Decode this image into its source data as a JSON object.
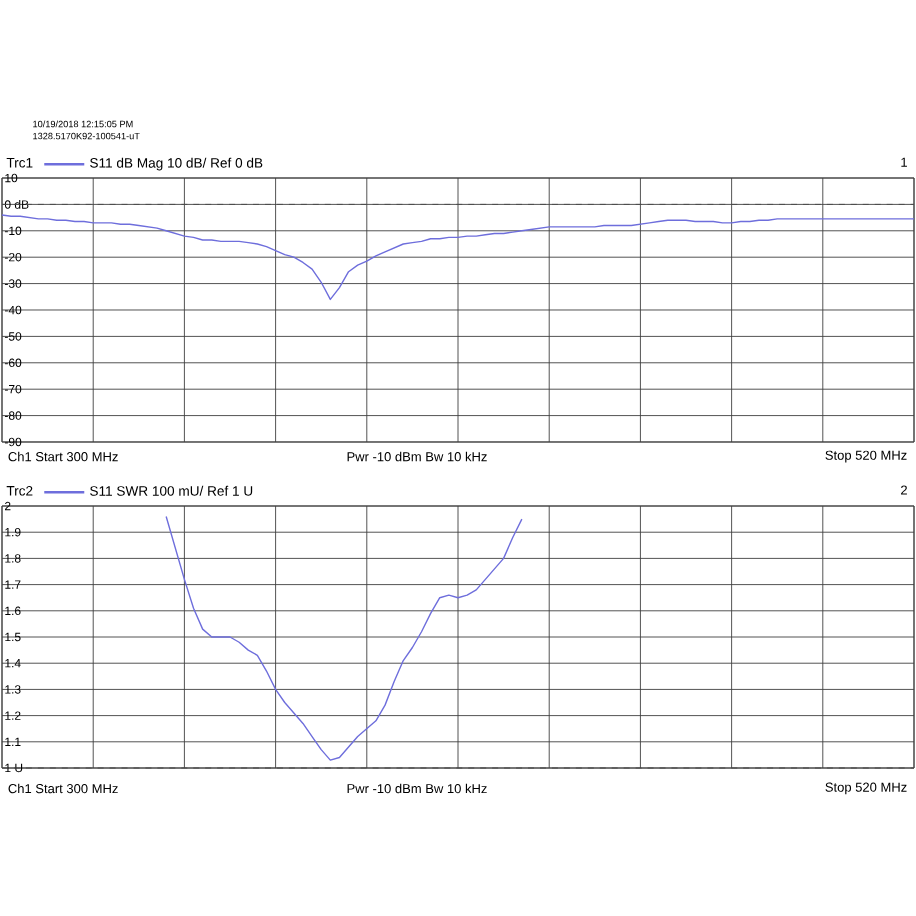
{
  "chart_data": [
    {
      "type": "line",
      "legend_title": "Trc1",
      "categories": [
        null,
        null,
        null,
        null,
        null,
        null,
        null,
        null,
        null,
        null,
        null,
        null,
        null,
        null,
        null,
        null,
        null,
        null,
        null,
        null,
        null,
        null,
        null,
        null,
        null,
        null,
        null,
        null,
        null,
        null,
        null,
        null,
        null,
        null,
        null,
        null,
        null,
        null,
        null,
        null,
        null,
        null,
        null,
        null,
        null,
        null,
        null,
        null,
        null,
        null,
        null,
        null,
        null,
        null,
        null,
        null,
        null,
        null,
        null,
        null,
        null,
        null,
        null,
        null,
        null,
        null,
        null,
        null,
        null,
        null,
        null,
        null,
        null,
        null,
        null,
        null,
        null,
        null,
        null,
        null,
        null,
        null,
        null,
        null,
        null,
        null,
        null,
        null,
        null,
        null,
        null,
        null,
        null,
        null,
        null,
        null,
        null,
        null,
        null,
        null,
        null
      ],
      "series": [
        {
          "name": "S11 dB Mag 10 dB/ Ref 0 dB",
          "color": "#6e6edc",
          "values": [
            -4,
            -4.5,
            -4.5,
            -5,
            -5.5,
            -5.5,
            -6,
            -6,
            -6.5,
            -6.5,
            -7,
            -7,
            -7,
            -7.5,
            -7.5,
            -8,
            -8.5,
            -9,
            -10,
            -11,
            -12,
            -12.5,
            -13.5,
            -13.5,
            -14,
            -14,
            -14,
            -14.5,
            -15,
            -16,
            -17.5,
            -19,
            -20,
            -22,
            -24.5,
            -29.5,
            -36,
            -31.5,
            -25.5,
            -23,
            -21.5,
            -19.5,
            -18,
            -16.5,
            -15,
            -14.5,
            -14,
            -13,
            -13,
            -12.5,
            -12.5,
            -12,
            -12,
            -11.5,
            -11,
            -11,
            -10.5,
            -10,
            -9.5,
            -9,
            -8.5,
            -8.5,
            -8.5,
            -8.5,
            -8.5,
            -8.5,
            -8,
            -8,
            -8,
            -8,
            -7.5,
            -7,
            -6.5,
            -6,
            -6,
            -6,
            -6.5,
            -6.5,
            -6.5,
            -7,
            -7,
            -6.5,
            -6.5,
            -6,
            -6,
            -5.5,
            -5.5,
            -5.5,
            -5.5,
            -5.5,
            -5.5,
            -5.5,
            -5.5,
            -5.5,
            -5.5,
            -5.5,
            -5.5,
            -5.5,
            -5.5,
            -5.5,
            -5.5
          ]
        }
      ],
      "ylim": [
        -90,
        10
      ],
      "yticks": [
        10,
        {
          "value": 0,
          "label": "0 dB"
        },
        -10,
        -20,
        -30,
        -40,
        -50,
        -60,
        -70,
        -80,
        -90
      ],
      "tick_labels": "y",
      "grid": true,
      "legend": "top left",
      "ref_lines": [
        {
          "axis": "y",
          "value": 0,
          "label": null,
          "color": "#4c4c4c",
          "line_style": "dashed"
        }
      ],
      "annotations": [
        "10/19/2018 12:15:05 PM",
        "1328.5170K92-100541-uT",
        "1",
        "Ch1 Start 300 MHz",
        "Pwr -10 dBm Bw 10 kHz",
        "Stop 520 MHz"
      ]
    },
    {
      "type": "line",
      "legend_title": "Trc2",
      "categories": [
        null,
        null,
        null,
        null,
        null,
        null,
        null,
        null,
        null,
        null,
        null,
        null,
        null,
        null,
        null,
        null,
        null,
        null,
        null,
        null,
        null,
        null,
        null,
        null,
        null,
        null,
        null,
        null,
        null,
        null,
        null,
        null,
        null,
        null,
        null,
        null,
        null,
        null,
        null,
        null,
        null,
        null,
        null,
        null,
        null,
        null,
        null,
        null,
        null,
        null,
        null,
        null,
        null,
        null,
        null,
        null,
        null,
        null,
        null,
        null,
        null,
        null,
        null,
        null,
        null,
        null,
        null,
        null,
        null,
        null,
        null,
        null,
        null,
        null,
        null,
        null,
        null,
        null,
        null,
        null,
        null,
        null,
        null,
        null,
        null,
        null,
        null,
        null,
        null,
        null,
        null,
        null,
        null,
        null,
        null,
        null,
        null,
        null,
        null,
        null,
        null
      ],
      "series": [
        {
          "name": "S11 SWR 100 mU/ Ref 1 U",
          "color": "#6e6edc",
          "values": [
            null,
            null,
            null,
            null,
            null,
            null,
            null,
            null,
            null,
            null,
            null,
            null,
            null,
            null,
            null,
            null,
            null,
            null,
            1.96,
            1.84,
            1.72,
            1.61,
            1.53,
            1.5,
            1.5,
            1.5,
            1.48,
            1.45,
            1.43,
            1.37,
            1.3,
            1.25,
            1.21,
            1.17,
            1.12,
            1.07,
            1.03,
            1.04,
            1.08,
            1.12,
            1.15,
            1.18,
            1.24,
            1.33,
            1.41,
            1.46,
            1.52,
            1.59,
            1.65,
            1.66,
            1.65,
            1.66,
            1.68,
            1.72,
            1.76,
            1.8,
            1.88,
            1.95,
            null,
            null,
            null,
            null,
            null,
            null,
            null,
            null,
            null,
            null,
            null,
            null,
            null,
            null,
            null,
            null,
            null,
            null,
            null,
            null,
            null,
            null,
            null,
            null,
            null,
            null,
            null,
            null,
            null,
            null,
            null,
            null,
            null,
            null,
            null,
            null,
            null,
            null,
            null,
            null,
            null,
            null,
            null
          ]
        }
      ],
      "ylim": [
        1,
        2
      ],
      "yticks": [
        2,
        1.9,
        1.8,
        1.7,
        1.6,
        1.5,
        1.4,
        1.3,
        1.2,
        1.1,
        {
          "value": 1,
          "label": "1 U"
        }
      ],
      "tick_labels": "y",
      "grid": true,
      "legend": "top left",
      "ref_lines": [
        {
          "axis": "y",
          "value": 1,
          "label": null,
          "color": "#4c4c4c",
          "line_style": "dashed"
        }
      ],
      "annotations": [
        "2",
        "Ch1 Start 300 MHz",
        "Pwr -10 dBm Bw 10 kHz",
        "Stop 520 MHz"
      ]
    }
  ]
}
